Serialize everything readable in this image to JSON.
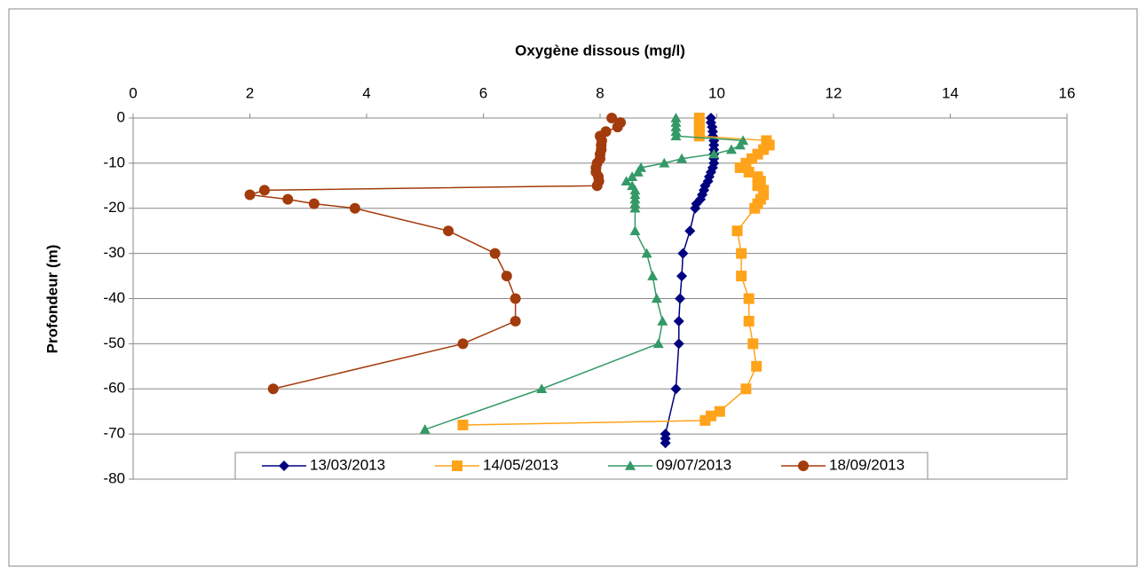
{
  "chart_data": {
    "type": "line",
    "title": "Oxygène dissous (mg/l)",
    "y_label": "Profondeur (m)",
    "xlim": [
      0,
      16
    ],
    "xticks": [
      0,
      2,
      4,
      6,
      8,
      10,
      12,
      14,
      16
    ],
    "ylim": [
      -80,
      0
    ],
    "yticks": [
      0,
      -10,
      -20,
      -30,
      -40,
      -50,
      -60,
      -70,
      -80
    ],
    "grid": true,
    "legend": "bottom",
    "series": [
      {
        "name": "13/03/2013",
        "color": "#000080",
        "marker": "diamond",
        "x": [
          9.9,
          9.9,
          9.92,
          9.93,
          9.93,
          9.95,
          9.95,
          9.95,
          9.95,
          9.95,
          9.95,
          9.93,
          9.9,
          9.87,
          9.85,
          9.8,
          9.78,
          9.75,
          9.72,
          9.65,
          9.63,
          9.54,
          9.42,
          9.4,
          9.37,
          9.35,
          9.35,
          9.3,
          9.12,
          9.12,
          9.12
        ],
        "values": [
          0,
          -1,
          -2,
          -3,
          -4,
          -5,
          -6,
          -7,
          -8,
          -9,
          -10,
          -11,
          -12,
          -13,
          -14,
          -15,
          -16,
          -17,
          -18,
          -19,
          -20,
          -25,
          -30,
          -35,
          -40,
          -45,
          -50,
          -60,
          -70,
          -71,
          -72
        ]
      },
      {
        "name": "14/05/2013",
        "color": "#FFA31A",
        "marker": "square",
        "x": [
          9.7,
          9.7,
          9.7,
          9.7,
          9.7,
          10.85,
          10.9,
          10.8,
          10.7,
          10.6,
          10.5,
          10.4,
          10.55,
          10.7,
          10.75,
          10.7,
          10.8,
          10.8,
          10.75,
          10.7,
          10.65,
          10.35,
          10.42,
          10.42,
          10.55,
          10.55,
          10.62,
          10.68,
          10.5,
          10.05,
          9.9,
          9.8,
          5.65
        ],
        "values": [
          0,
          -1,
          -2,
          -3,
          -4,
          -5,
          -6,
          -7,
          -8,
          -9,
          -10,
          -11,
          -12,
          -13,
          -14,
          -15,
          -16,
          -17,
          -18,
          -19,
          -20,
          -25,
          -30,
          -35,
          -40,
          -45,
          -50,
          -55,
          -60,
          -65,
          -66,
          -67,
          -68
        ]
      },
      {
        "name": "09/07/2013",
        "color": "#339966",
        "marker": "triangle",
        "x": [
          9.3,
          9.3,
          9.3,
          9.3,
          9.3,
          10.45,
          10.4,
          10.25,
          9.95,
          9.4,
          9.1,
          8.7,
          8.65,
          8.55,
          8.45,
          8.55,
          8.6,
          8.6,
          8.6,
          8.6,
          8.6,
          8.6,
          8.8,
          8.9,
          8.97,
          9.07,
          9.0,
          7.0,
          5.0
        ],
        "values": [
          0,
          -1,
          -2,
          -3,
          -4,
          -5,
          -6,
          -7,
          -8,
          -9,
          -10,
          -11,
          -12,
          -13,
          -14,
          -15,
          -16,
          -17,
          -18,
          -19,
          -20,
          -25,
          -30,
          -35,
          -40,
          -45,
          -50,
          -60,
          -69
        ]
      },
      {
        "name": "18/09/2013",
        "color": "#A33B0C",
        "marker": "circle",
        "x": [
          8.2,
          8.35,
          8.3,
          8.1,
          8.0,
          8.03,
          8.02,
          8.02,
          8.0,
          8.0,
          7.95,
          7.93,
          7.93,
          7.97,
          7.98,
          7.95,
          2.25,
          2.0,
          2.65,
          3.1,
          3.8,
          5.4,
          6.2,
          6.4,
          6.55,
          6.55,
          5.65,
          2.4
        ],
        "values": [
          0,
          -1,
          -2,
          -3,
          -4,
          -5,
          -6,
          -7,
          -8,
          -9,
          -10,
          -11,
          -12,
          -13,
          -14,
          -15,
          -16,
          -17,
          -18,
          -19,
          -20,
          -25,
          -30,
          -35,
          -40,
          -45,
          -50,
          -60
        ]
      }
    ]
  }
}
